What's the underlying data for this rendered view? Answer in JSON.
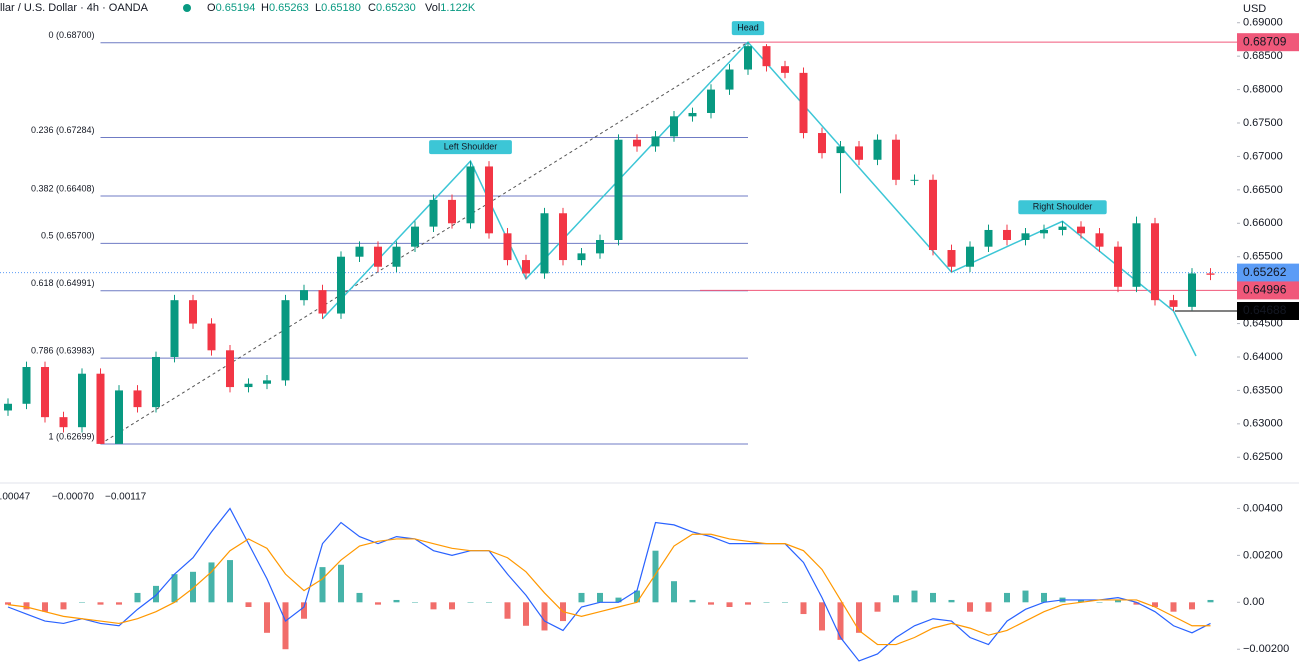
{
  "header": {
    "symbol": "llar / U.S. Dollar · 4h · OANDA",
    "legend": [
      {
        "key": "O",
        "value": "0.65194"
      },
      {
        "key": "H",
        "value": "0.65263"
      },
      {
        "key": "L",
        "value": "0.65180"
      },
      {
        "key": "C",
        "value": "0.65230"
      },
      {
        "key": "Vol",
        "value": "1.122K"
      }
    ]
  },
  "chart_data": [
    {
      "type": "candlestick",
      "axis_label": "USD",
      "up_color": "#089981",
      "down_color": "#f23645",
      "open": [
        0.632,
        0.633,
        0.6385,
        0.631,
        0.6295,
        0.6375,
        0.627,
        0.635,
        0.6325,
        0.64,
        0.6485,
        0.645,
        0.641,
        0.6355,
        0.636,
        0.6365,
        0.6485,
        0.65,
        0.6465,
        0.655,
        0.6565,
        0.6535,
        0.6565,
        0.6595,
        0.6635,
        0.66,
        0.6685,
        0.6585,
        0.6545,
        0.6525,
        0.6615,
        0.6545,
        0.6555,
        0.6575,
        0.6725,
        0.6715,
        0.673,
        0.676,
        0.6765,
        0.68,
        0.683,
        0.6865,
        0.6835,
        0.6825,
        0.6735,
        0.6705,
        0.6715,
        0.6695,
        0.6725,
        0.6665,
        0.6665,
        0.656,
        0.6535,
        0.6565,
        0.659,
        0.6575,
        0.6585,
        0.659,
        0.6595,
        0.6585,
        0.6565,
        0.6505,
        0.66,
        0.6485,
        0.6475,
        0.6525
      ],
      "high": [
        0.6338,
        0.6393,
        0.6393,
        0.6318,
        0.6383,
        0.6383,
        0.6358,
        0.6358,
        0.6408,
        0.6493,
        0.6493,
        0.6458,
        0.6418,
        0.6368,
        0.6373,
        0.6493,
        0.6508,
        0.6508,
        0.6558,
        0.6573,
        0.6573,
        0.6573,
        0.6603,
        0.6643,
        0.6643,
        0.6693,
        0.6693,
        0.6593,
        0.6553,
        0.6623,
        0.6623,
        0.6563,
        0.6583,
        0.6733,
        0.6733,
        0.6738,
        0.6768,
        0.6773,
        0.6808,
        0.6838,
        0.68709,
        0.6868,
        0.6843,
        0.6833,
        0.6743,
        0.6723,
        0.6723,
        0.6733,
        0.6733,
        0.6673,
        0.6673,
        0.6568,
        0.6573,
        0.6598,
        0.6598,
        0.6593,
        0.6598,
        0.6603,
        0.6603,
        0.6593,
        0.6573,
        0.661,
        0.6608,
        0.6493,
        0.6533,
        0.6533
      ],
      "low": [
        0.6312,
        0.6322,
        0.6302,
        0.6287,
        0.6287,
        0.62699,
        0.6272,
        0.6317,
        0.6317,
        0.6392,
        0.6442,
        0.6402,
        0.6347,
        0.6347,
        0.6352,
        0.6357,
        0.6477,
        0.6457,
        0.6457,
        0.6542,
        0.6527,
        0.6527,
        0.6557,
        0.6587,
        0.6592,
        0.6592,
        0.6577,
        0.6537,
        0.6517,
        0.6517,
        0.6537,
        0.6537,
        0.6547,
        0.6567,
        0.6707,
        0.6707,
        0.6722,
        0.6752,
        0.6757,
        0.6792,
        0.6822,
        0.6827,
        0.6817,
        0.6727,
        0.6697,
        0.6645,
        0.6687,
        0.6687,
        0.6657,
        0.6657,
        0.6552,
        0.6527,
        0.6527,
        0.6557,
        0.6567,
        0.6567,
        0.6577,
        0.6582,
        0.6577,
        0.6557,
        0.6497,
        0.6497,
        0.6477,
        0.64688,
        0.647,
        0.6515
      ],
      "close": [
        0.633,
        0.6385,
        0.631,
        0.6295,
        0.6375,
        0.627,
        0.635,
        0.6325,
        0.64,
        0.6485,
        0.645,
        0.641,
        0.6355,
        0.636,
        0.6365,
        0.6485,
        0.65,
        0.6465,
        0.655,
        0.6565,
        0.6535,
        0.6565,
        0.6595,
        0.6635,
        0.66,
        0.6685,
        0.6585,
        0.6545,
        0.6525,
        0.6615,
        0.6545,
        0.6555,
        0.6575,
        0.6725,
        0.6715,
        0.673,
        0.676,
        0.6765,
        0.68,
        0.683,
        0.6865,
        0.6835,
        0.6825,
        0.6735,
        0.6705,
        0.6715,
        0.6695,
        0.6725,
        0.6665,
        0.6665,
        0.656,
        0.6535,
        0.6565,
        0.659,
        0.6575,
        0.6585,
        0.659,
        0.6595,
        0.6585,
        0.6565,
        0.6505,
        0.66,
        0.6485,
        0.6475,
        0.6525,
        0.6523
      ],
      "ylim": [
        0.6213,
        0.6934
      ],
      "yticks": [
        {
          "value": 0.625,
          "label": "0.62500"
        },
        {
          "value": 0.63,
          "label": "0.63000"
        },
        {
          "value": 0.635,
          "label": "0.63500"
        },
        {
          "value": 0.64,
          "label": "0.64000"
        },
        {
          "value": 0.645,
          "label": "0.64500"
        },
        {
          "value": 0.65,
          "label": "0.65000"
        },
        {
          "value": 0.655,
          "label": "0.65500"
        },
        {
          "value": 0.66,
          "label": "0.66000"
        },
        {
          "value": 0.665,
          "label": "0.66500"
        },
        {
          "value": 0.67,
          "label": "0.67000"
        },
        {
          "value": 0.675,
          "label": "0.67500"
        },
        {
          "value": 0.68,
          "label": "0.68000"
        },
        {
          "value": 0.685,
          "label": "0.68500"
        },
        {
          "value": 0.69,
          "label": "0.69000"
        }
      ],
      "fib": {
        "color": "#6f7bc4",
        "levels": [
          {
            "value": 0.687,
            "label": "0 (0.68700)"
          },
          {
            "value": 0.67284,
            "label": "0.236 (0.67284)"
          },
          {
            "value": 0.66408,
            "label": "0.382 (0.66408)"
          },
          {
            "value": 0.657,
            "label": "0.5 (0.65700)"
          },
          {
            "value": 0.64991,
            "label": "0.618 (0.64991)"
          },
          {
            "value": 0.63983,
            "label": "0.786 (0.63983)"
          },
          {
            "value": 0.62699,
            "label": "1 (0.62699)"
          }
        ]
      },
      "price_tags": [
        {
          "value": 0.68709,
          "color": "#f0587a",
          "text_color": "#ffffff"
        },
        {
          "value": 0.65262,
          "color": "#5b9cf6",
          "text_color": "#131722"
        },
        {
          "value": 0.64996,
          "color": "#f0587a",
          "text_color": "#ffffff"
        },
        {
          "value": 0.64688,
          "color": "#000000",
          "text_color": "#ffffff"
        }
      ],
      "annotations": [
        "Head",
        "Left Shoulder",
        "Right Shoulder"
      ],
      "annotation_color": "#3cc6d6"
    },
    {
      "type": "macd",
      "ylim": [
        -0.0028,
        0.005
      ],
      "yticks": [
        {
          "value": 0.004,
          "label": "0.00400"
        },
        {
          "value": 0.002,
          "label": "0.00200"
        },
        {
          "value": 0,
          "label": "0.00"
        },
        {
          "value": -0.002,
          "label": "−0.00200"
        }
      ],
      "series": [
        {
          "kind": "histogram",
          "legend": "0.00047",
          "color": "#8fd3c6",
          "up_color": "#26a69a",
          "down_color": "#ef5350",
          "values": [
            -0.0001,
            -0.0003,
            -0.0004,
            -0.0003,
            0.0,
            -0.0001,
            -0.0001,
            0.0004,
            0.0007,
            0.0012,
            0.0013,
            0.0017,
            0.0018,
            -0.0002,
            -0.0013,
            -0.002,
            -0.0007,
            0.0015,
            0.0016,
            0.0004,
            -0.0001,
            0.0001,
            0.0,
            -0.0003,
            -0.0003,
            0.0,
            0.0,
            -0.0007,
            -0.001,
            -0.0012,
            -0.0008,
            0.0004,
            0.0004,
            0.0002,
            0.0005,
            0.0022,
            0.0009,
            0.0001,
            -0.0001,
            -0.0002,
            -0.0001,
            0.0,
            0.0,
            -0.0005,
            -0.0012,
            -0.0016,
            -0.0013,
            -0.0004,
            0.0003,
            0.0005,
            0.0004,
            0.0001,
            -0.0004,
            -0.0004,
            0.0004,
            0.0005,
            0.0004,
            0.0002,
            0.0001,
            0.0,
            0.0001,
            -0.0001,
            -0.0002,
            -0.0004,
            -0.0003,
            0.0001
          ]
        },
        {
          "kind": "line",
          "legend": "−0.00070",
          "color": "#2962ff",
          "values": [
            -0.0002,
            -0.0005,
            -0.0008,
            -0.0009,
            -0.0007,
            -0.0009,
            -0.001,
            -0.0003,
            0.0003,
            0.0012,
            0.0019,
            0.003,
            0.004,
            0.0025,
            0.001,
            -0.0008,
            -0.0002,
            0.0025,
            0.0034,
            0.0028,
            0.0025,
            0.0028,
            0.0027,
            0.0022,
            0.002,
            0.0022,
            0.0022,
            0.0012,
            0.0003,
            -0.0008,
            -0.0012,
            -0.0002,
            0.0,
            0.0,
            0.0005,
            0.0034,
            0.0033,
            0.003,
            0.0028,
            0.0025,
            0.0025,
            0.0025,
            0.0025,
            0.0017,
            0.0002,
            -0.0015,
            -0.0025,
            -0.0022,
            -0.0015,
            -0.001,
            -0.0007,
            -0.0008,
            -0.0015,
            -0.0018,
            -0.0008,
            -0.0003,
            0.0,
            0.0001,
            0.0001,
            0.0001,
            0.0002,
            0.0,
            -0.0004,
            -0.001,
            -0.0013,
            -0.0009
          ]
        },
        {
          "kind": "line",
          "legend": "−0.00117",
          "color": "#ff9800",
          "values": [
            -0.0001,
            -0.0002,
            -0.0004,
            -0.0006,
            -0.0007,
            -0.0008,
            -0.0009,
            -0.0007,
            -0.0004,
            0.0,
            0.0006,
            0.0013,
            0.0022,
            0.0027,
            0.0023,
            0.0012,
            0.0005,
            0.001,
            0.0018,
            0.0024,
            0.0026,
            0.0027,
            0.0027,
            0.0025,
            0.0023,
            0.0022,
            0.0022,
            0.0019,
            0.0013,
            0.0004,
            -0.0004,
            -0.0006,
            -0.0004,
            -0.0002,
            0.0,
            0.0012,
            0.0024,
            0.0029,
            0.0029,
            0.0027,
            0.0026,
            0.0025,
            0.0025,
            0.0022,
            0.0014,
            0.0001,
            -0.0012,
            -0.0018,
            -0.0018,
            -0.0015,
            -0.0011,
            -0.0009,
            -0.0011,
            -0.0014,
            -0.0012,
            -0.0008,
            -0.0004,
            -0.0001,
            0.0,
            0.0001,
            0.0001,
            0.0001,
            -0.0002,
            -0.0006,
            -0.001,
            -0.001
          ]
        }
      ]
    }
  ]
}
